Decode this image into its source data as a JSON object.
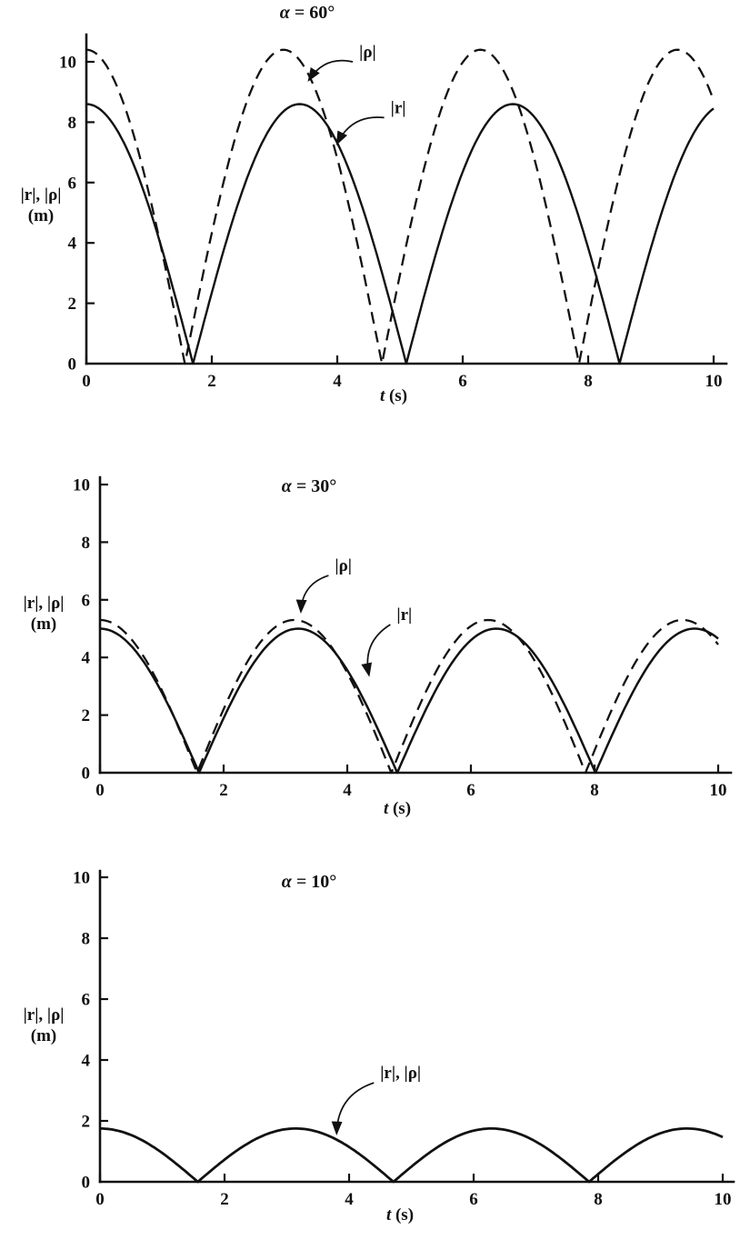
{
  "page": {
    "background": "#ffffff",
    "ink": "#111111"
  },
  "chart_data": [
    {
      "type": "line",
      "title": "α = 60°",
      "title_symbol": "α",
      "title_rest": " = 60°",
      "ylabel_line1": "|r|, |ρ|",
      "ylabel_line2": "(m)",
      "xlabel_var": "t",
      "xlabel_unit": " (s)",
      "xlim": [
        0,
        10
      ],
      "ylim": [
        0,
        10.9
      ],
      "x_ticks": [
        0,
        2,
        4,
        6,
        8,
        10
      ],
      "y_ticks": [
        0,
        2,
        4,
        6,
        8,
        10
      ],
      "grid": false,
      "legend": "inline-annotations",
      "series": [
        {
          "name": "|ρ|",
          "line": "dashed",
          "model": "abs_cosine",
          "amplitude": 10.4,
          "omega": 1.0,
          "zeros_t": [
            1.57,
            4.71,
            7.85
          ],
          "peaks_t": [
            0,
            3.14,
            6.28,
            9.42
          ],
          "peak_value": 10.4,
          "value_at_t0": 10.4,
          "width": 2.3
        },
        {
          "name": "|r|",
          "line": "solid",
          "model": "abs_cosine",
          "amplitude": 8.6,
          "omega": 0.924,
          "zeros_t": [
            1.7,
            5.1,
            8.5
          ],
          "peaks_t": [
            0,
            3.4,
            6.8
          ],
          "peak_value": 8.6,
          "value_at_t0": 8.6,
          "width": 2.4
        }
      ],
      "annotations": [
        {
          "text": "|ρ|",
          "text_t": 4.35,
          "text_y": 10.15,
          "tip_t": 3.55,
          "tip_y": 9.4
        },
        {
          "text": "|r|",
          "text_t": 4.85,
          "text_y": 8.3,
          "tip_t": 4.0,
          "tip_y": 7.3
        }
      ]
    },
    {
      "type": "line",
      "title": "α = 30°",
      "title_symbol": "α",
      "title_rest": " = 30°",
      "ylabel_line1": "|r|, |ρ|",
      "ylabel_line2": "(m)",
      "xlabel_var": "t",
      "xlabel_unit": " (s)",
      "xlim": [
        0,
        10
      ],
      "ylim": [
        0,
        10.2
      ],
      "x_ticks": [
        0,
        2,
        4,
        6,
        8,
        10
      ],
      "y_ticks": [
        0,
        2,
        4,
        6,
        8,
        10
      ],
      "grid": false,
      "legend": "inline-annotations",
      "series": [
        {
          "name": "|ρ|",
          "line": "dashed",
          "model": "abs_cosine",
          "amplitude": 5.3,
          "omega": 1.0,
          "zeros_t": [
            1.57,
            4.71,
            7.85
          ],
          "peaks_t": [
            0,
            3.14,
            6.28,
            9.42
          ],
          "peak_value": 5.3,
          "value_at_t0": 5.3,
          "width": 2.3
        },
        {
          "name": "|r|",
          "line": "solid",
          "model": "abs_cosine",
          "amplitude": 5.0,
          "omega": 0.98,
          "zeros_t": [
            1.6,
            4.81,
            8.01
          ],
          "peaks_t": [
            0,
            3.21,
            6.41,
            9.62
          ],
          "peak_value": 5.0,
          "value_at_t0": 5.0,
          "width": 2.5
        }
      ],
      "annotations": [
        {
          "text": "|ρ|",
          "text_t": 3.8,
          "text_y": 7.0,
          "tip_t": 3.25,
          "tip_y": 5.6
        },
        {
          "text": "|r|",
          "text_t": 4.8,
          "text_y": 5.3,
          "tip_t": 4.35,
          "tip_y": 3.4
        }
      ]
    },
    {
      "type": "line",
      "title": "α = 10°",
      "title_symbol": "α",
      "title_rest": " = 10°",
      "ylabel_line1": "|r|, |ρ|",
      "ylabel_line2": "(m)",
      "xlabel_var": "t",
      "xlabel_unit": " (s)",
      "xlim": [
        0,
        10
      ],
      "ylim": [
        0,
        10.2
      ],
      "x_ticks": [
        0,
        2,
        4,
        6,
        8,
        10
      ],
      "y_ticks": [
        0,
        2,
        4,
        6,
        8,
        10
      ],
      "grid": false,
      "legend": "inline-annotations",
      "series": [
        {
          "name": "|r|, |ρ|",
          "line": "solid",
          "model": "abs_cosine",
          "amplitude": 1.75,
          "omega": 1.0,
          "zeros_t": [
            1.57,
            4.71,
            7.85
          ],
          "peaks_t": [
            0,
            3.14,
            6.28,
            9.42
          ],
          "peak_value": 1.75,
          "value_at_t0": 1.75,
          "width": 2.8
        }
      ],
      "annotations": [
        {
          "text": "|r|, |ρ|",
          "text_t": 4.5,
          "text_y": 3.4,
          "tip_t": 3.8,
          "tip_y": 1.6
        }
      ]
    }
  ]
}
